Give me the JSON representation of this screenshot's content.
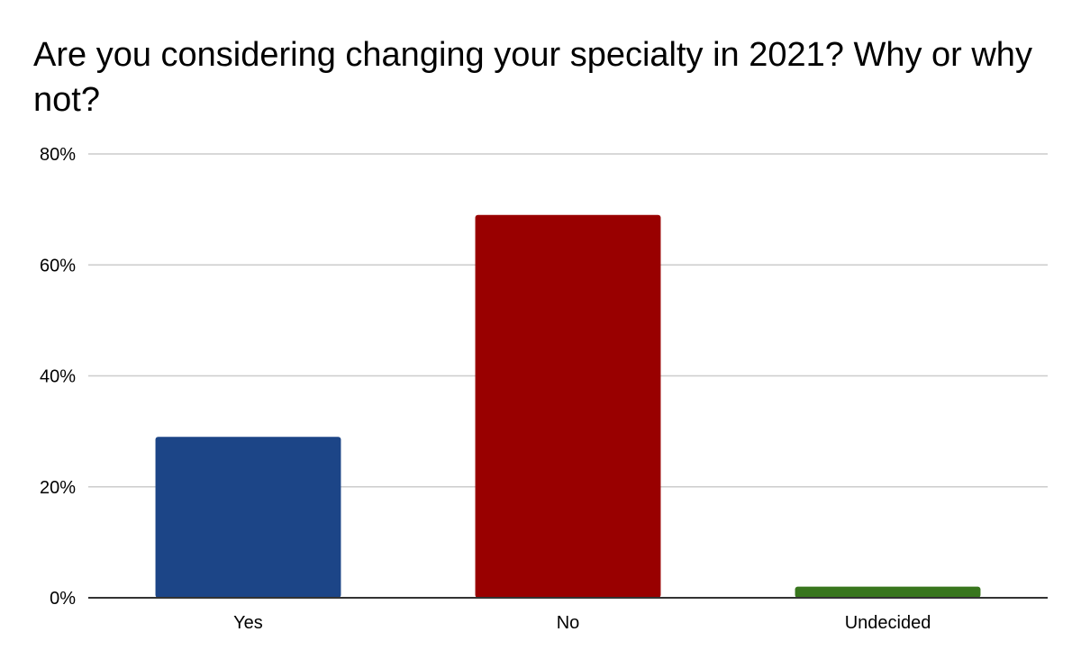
{
  "chart_data": {
    "type": "bar",
    "title": "Are you considering changing your specialty in 2021? Why or why not?",
    "categories": [
      "Yes",
      "No",
      "Undecided"
    ],
    "values": [
      29,
      69,
      2
    ],
    "colors": [
      "#1c4587",
      "#990000",
      "#38761d"
    ],
    "value_format": "percent",
    "ylim": [
      0,
      80
    ],
    "yticks": [
      0,
      20,
      40,
      60,
      80
    ],
    "ytick_labels": [
      "0%",
      "20%",
      "40%",
      "60%",
      "80%"
    ],
    "grid": true,
    "legend": "none",
    "xlabel": "",
    "ylabel": ""
  }
}
